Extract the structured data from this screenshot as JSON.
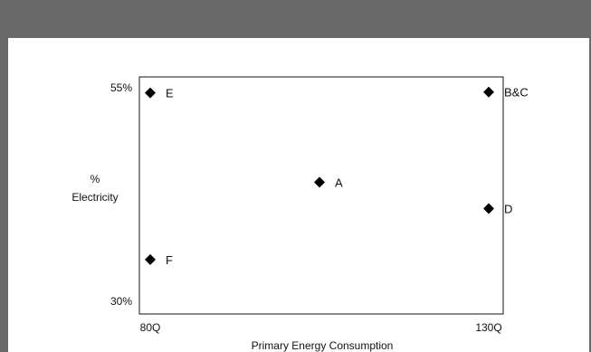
{
  "chart_data": {
    "type": "scatter",
    "title": "",
    "xlabel": "Primary Energy Consumption",
    "ylabel_lines": [
      "%",
      "Electricity"
    ],
    "x_ticks": [
      "80Q",
      "130Q"
    ],
    "y_ticks": [
      "55%",
      "30%"
    ],
    "xlim": [
      80,
      130
    ],
    "ylim": [
      30,
      55
    ],
    "grid": false,
    "points": [
      {
        "label": "E",
        "x": 80,
        "y": 54.4
      },
      {
        "label": "B&C",
        "x": 130,
        "y": 54.5
      },
      {
        "label": "A",
        "x": 105,
        "y": 43.9
      },
      {
        "label": "D",
        "x": 130,
        "y": 40.8
      },
      {
        "label": "F",
        "x": 80,
        "y": 34.8
      }
    ],
    "colors": {
      "marker": "#000000",
      "frame_bar": "#6a6a6a"
    }
  }
}
